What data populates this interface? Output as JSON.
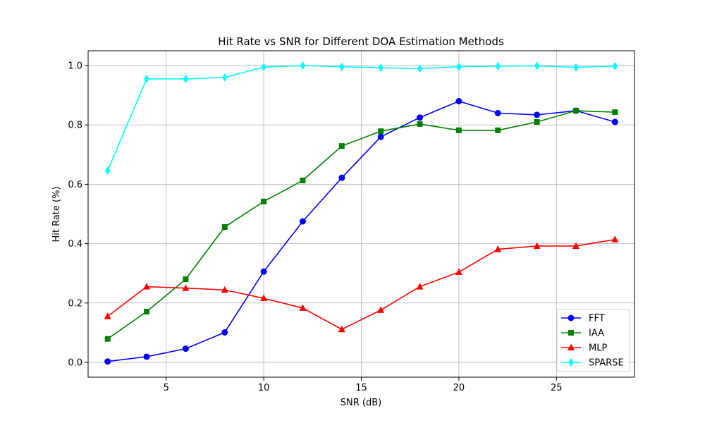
{
  "chart_data": {
    "type": "line",
    "title": "Hit Rate vs SNR for Different DOA Estimation Methods",
    "xlabel": "SNR (dB)",
    "ylabel": "Hit Rate (%)",
    "xlim": [
      1.0,
      29.0
    ],
    "ylim": [
      -0.05,
      1.05
    ],
    "xticks": [
      5,
      10,
      15,
      20,
      25
    ],
    "xtick_labels": [
      "5",
      "10",
      "15",
      "20",
      "25"
    ],
    "yticks": [
      0.0,
      0.2,
      0.4,
      0.6,
      0.8,
      1.0
    ],
    "ytick_labels": [
      "0.0",
      "0.2",
      "0.4",
      "0.6",
      "0.8",
      "1.0"
    ],
    "grid": true,
    "legend_position": "lower-right",
    "x": [
      2,
      4,
      6,
      8,
      10,
      12,
      14,
      16,
      18,
      20,
      22,
      24,
      26,
      28
    ],
    "series": [
      {
        "name": "FFT",
        "color": "#0000ff",
        "marker": "circle",
        "values": [
          0.003,
          0.019,
          0.046,
          0.101,
          0.306,
          0.475,
          0.622,
          0.76,
          0.825,
          0.88,
          0.84,
          0.834,
          0.848,
          0.81
        ]
      },
      {
        "name": "IAA",
        "color": "#008000",
        "marker": "square",
        "values": [
          0.079,
          0.171,
          0.28,
          0.456,
          0.542,
          0.613,
          0.729,
          0.779,
          0.803,
          0.782,
          0.782,
          0.81,
          0.848,
          0.843
        ]
      },
      {
        "name": "MLP",
        "color": "#ff0000",
        "marker": "triangle",
        "values": [
          0.155,
          0.255,
          0.25,
          0.244,
          0.216,
          0.183,
          0.111,
          0.176,
          0.255,
          0.304,
          0.381,
          0.392,
          0.392,
          0.414
        ]
      },
      {
        "name": "SPARSE",
        "color": "#00ffff",
        "marker": "diamond",
        "values": [
          0.646,
          0.955,
          0.955,
          0.96,
          0.995,
          1.0,
          0.996,
          0.993,
          0.99,
          0.996,
          0.998,
          0.999,
          0.994,
          0.998
        ]
      }
    ]
  }
}
